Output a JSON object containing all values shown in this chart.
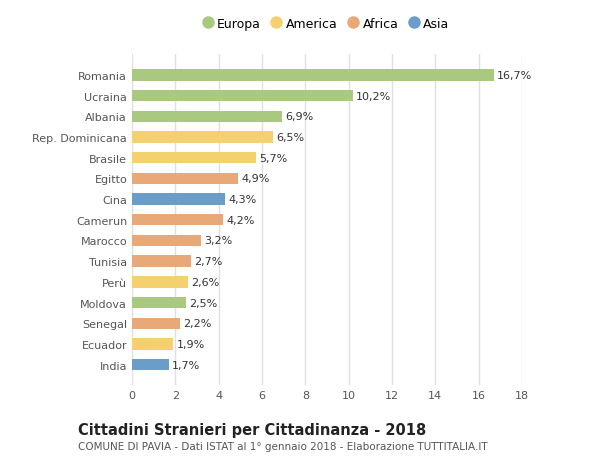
{
  "countries": [
    "Romania",
    "Ucraina",
    "Albania",
    "Rep. Dominicana",
    "Brasile",
    "Egitto",
    "Cina",
    "Camerun",
    "Marocco",
    "Tunisia",
    "Perù",
    "Moldova",
    "Senegal",
    "Ecuador",
    "India"
  ],
  "values": [
    16.7,
    10.2,
    6.9,
    6.5,
    5.7,
    4.9,
    4.3,
    4.2,
    3.2,
    2.7,
    2.6,
    2.5,
    2.2,
    1.9,
    1.7
  ],
  "labels": [
    "16,7%",
    "10,2%",
    "6,9%",
    "6,5%",
    "5,7%",
    "4,9%",
    "4,3%",
    "4,2%",
    "3,2%",
    "2,7%",
    "2,6%",
    "2,5%",
    "2,2%",
    "1,9%",
    "1,7%"
  ],
  "continents": [
    "Europa",
    "Europa",
    "Europa",
    "America",
    "America",
    "Africa",
    "Asia",
    "Africa",
    "Africa",
    "Africa",
    "America",
    "Europa",
    "Africa",
    "America",
    "Asia"
  ],
  "continent_colors": {
    "Europa": "#a8c97f",
    "America": "#f5d06e",
    "Africa": "#e8a878",
    "Asia": "#6b9dc9"
  },
  "legend_order": [
    "Europa",
    "America",
    "Africa",
    "Asia"
  ],
  "title": "Cittadini Stranieri per Cittadinanza - 2018",
  "subtitle": "COMUNE DI PAVIA - Dati ISTAT al 1° gennaio 2018 - Elaborazione TUTTITALIA.IT",
  "xlim": [
    0,
    18
  ],
  "xticks": [
    0,
    2,
    4,
    6,
    8,
    10,
    12,
    14,
    16,
    18
  ],
  "background_color": "#ffffff",
  "plot_bg_color": "#ffffff",
  "bar_height": 0.55,
  "grid_color": "#e0e0e0",
  "title_fontsize": 10.5,
  "subtitle_fontsize": 7.5,
  "tick_fontsize": 8,
  "label_fontsize": 8,
  "legend_fontsize": 9
}
